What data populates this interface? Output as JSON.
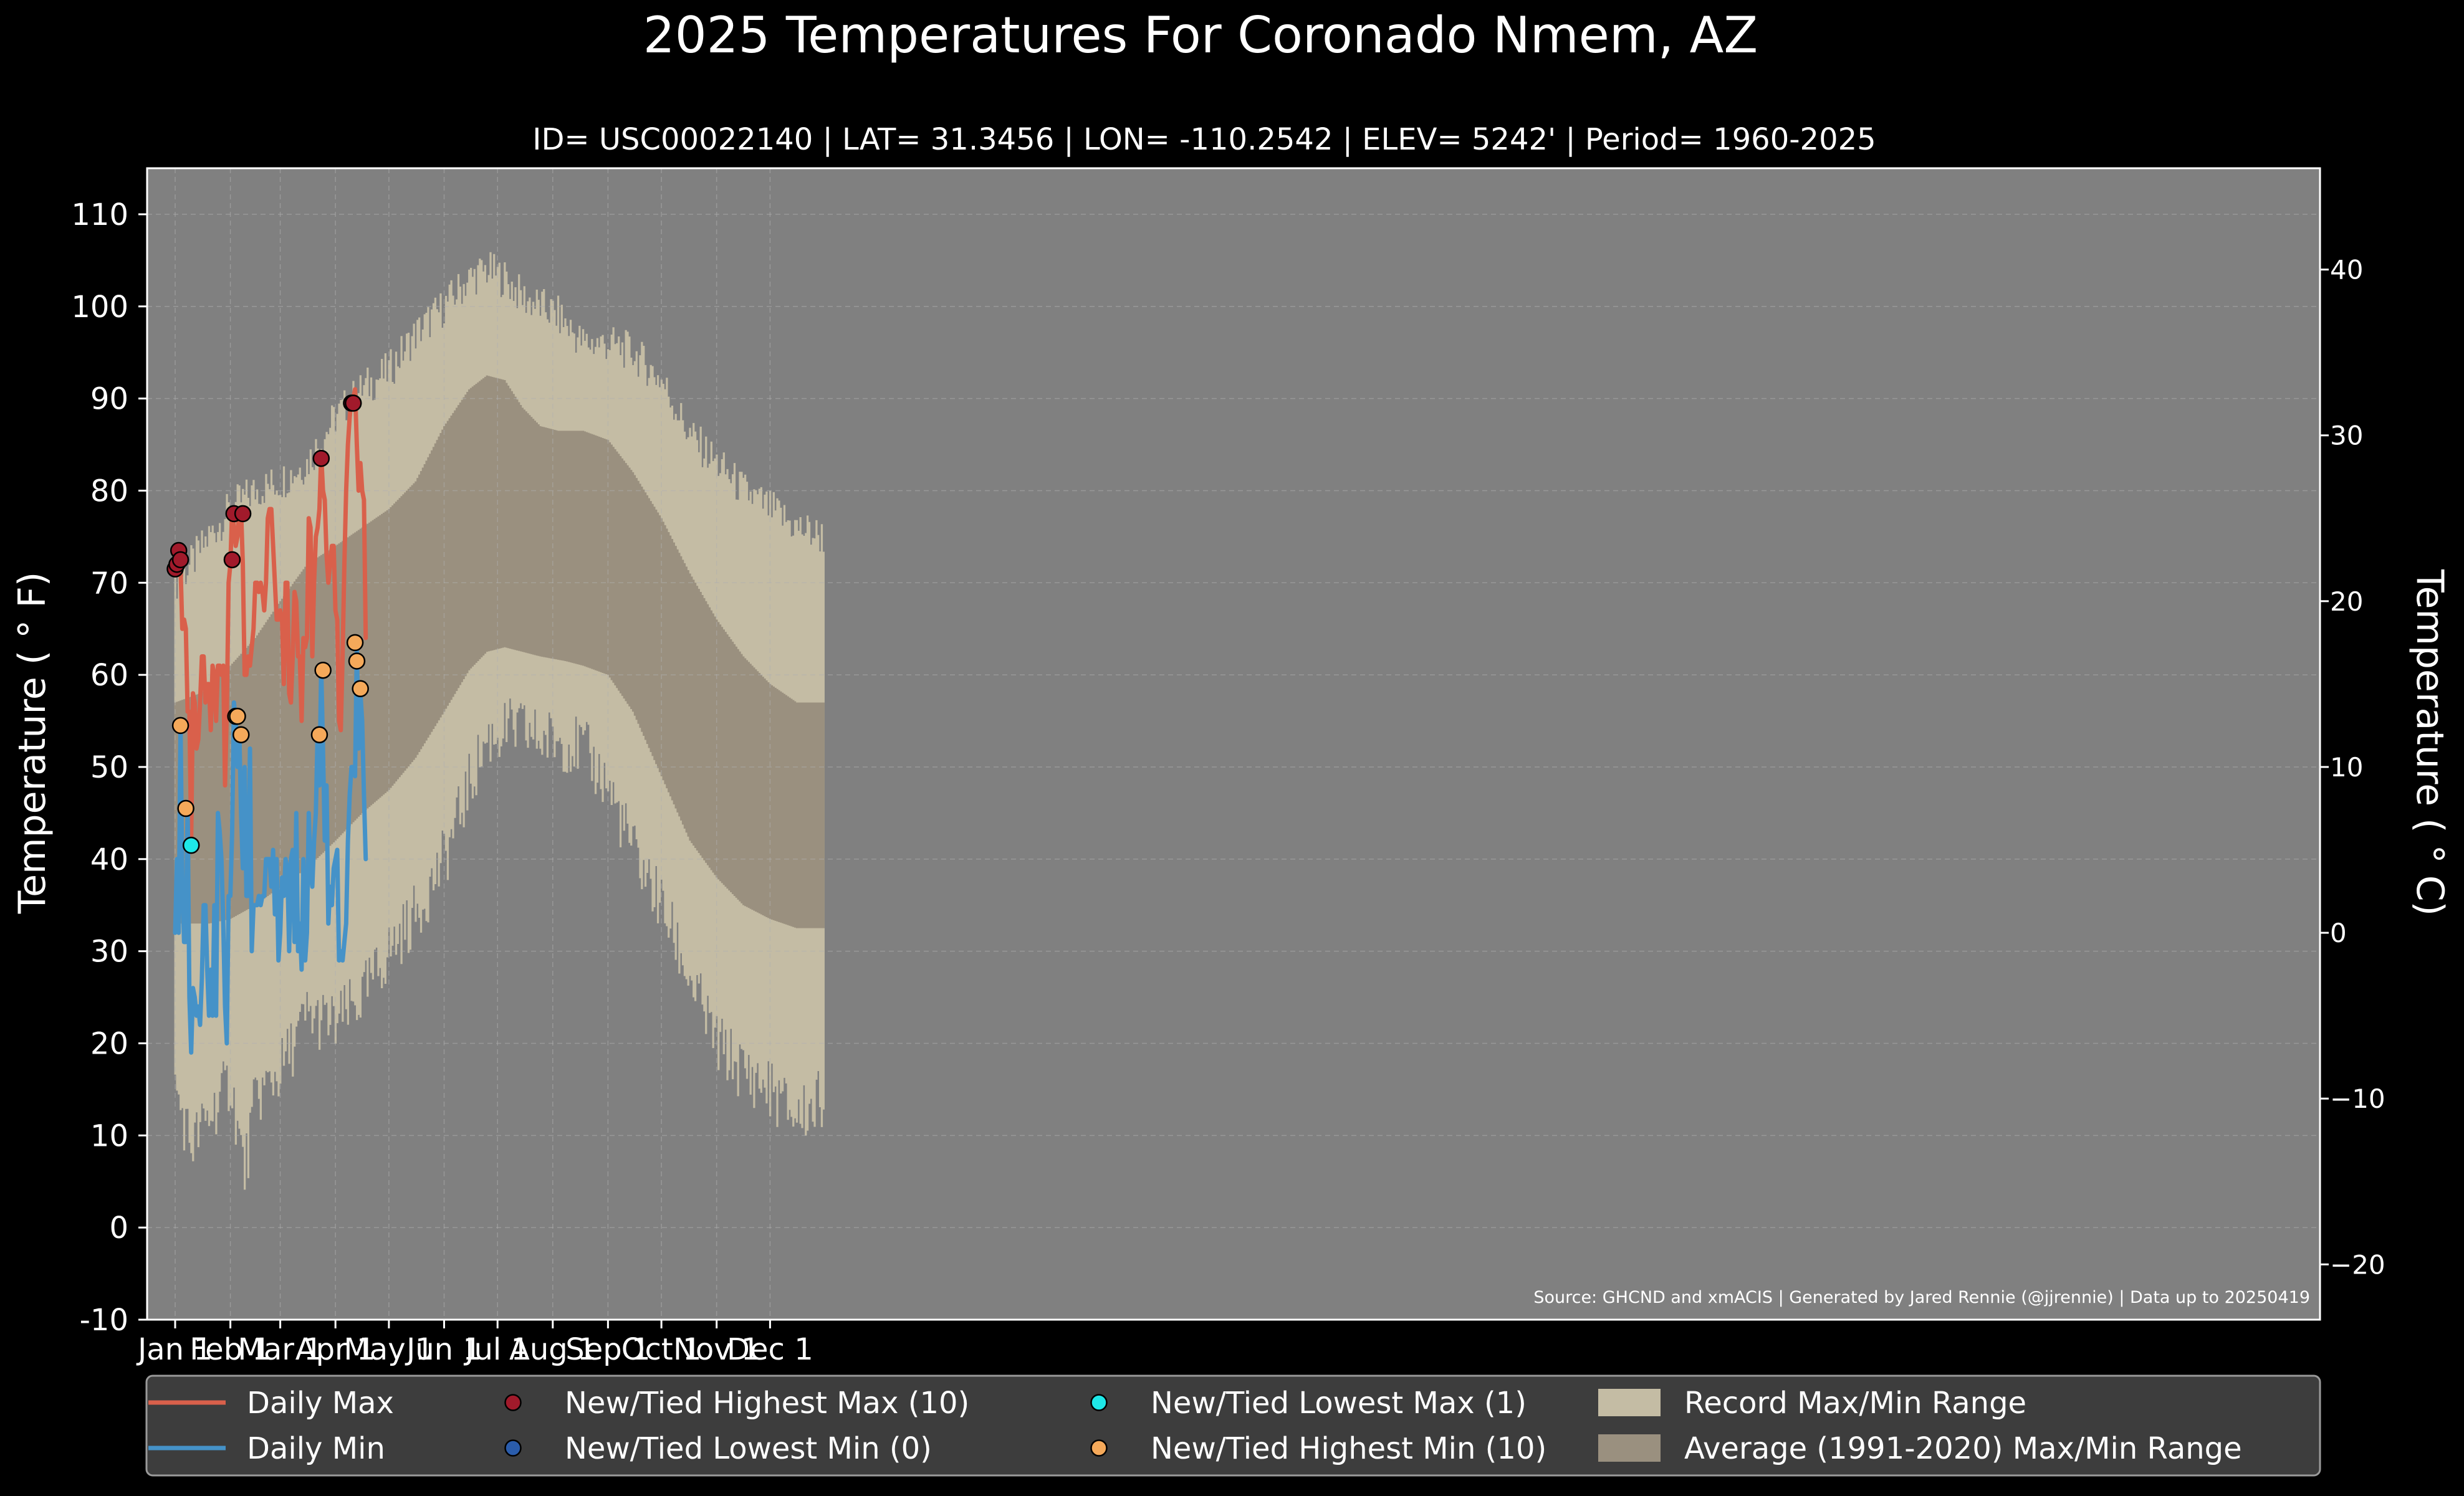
{
  "chart_data": {
    "type": "line",
    "title": "2025 Temperatures For Coronado Nmem, AZ",
    "subtitle": "ID= USC00022140 | LAT= 31.3456 | LON= -110.2542 | ELEV= 5242' | Period= 1960-2025",
    "ylabel": "Temperature ($^\\circ$F)",
    "ylabel_display": "Temperature ( ° F)",
    "y2label_display": "Temperature ( ° C)",
    "source_note": "Source: GHCND and xmACIS | Generated by Jared Rennie (@jjrennie) | Data up to 20250419",
    "ylim": [
      -10,
      115
    ],
    "yticks": [
      "-10",
      "0",
      "10",
      "20",
      "30",
      "40",
      "50",
      "60",
      "70",
      "80",
      "90",
      "100",
      "110"
    ],
    "y2ticks": [
      "−20",
      "−10",
      "0",
      "10",
      "20",
      "30",
      "40"
    ],
    "y2tick_values_c": [
      -20,
      -10,
      0,
      10,
      20,
      30,
      40
    ],
    "xticks": [
      {
        "label": "Jan 1",
        "day": 1
      },
      {
        "label": "Feb 1",
        "day": 32
      },
      {
        "label": "Mar 1",
        "day": 60
      },
      {
        "label": "Apr 1",
        "day": 91
      },
      {
        "label": "May 1",
        "day": 121
      },
      {
        "label": "Jun 1",
        "day": 152
      },
      {
        "label": "Jul 1",
        "day": 182
      },
      {
        "label": "Aug 1",
        "day": 213
      },
      {
        "label": "Sep 1",
        "day": 244
      },
      {
        "label": "Oct 1",
        "day": 274
      },
      {
        "label": "Nov 1",
        "day": 305
      },
      {
        "label": "Dec 1",
        "day": 335
      }
    ],
    "grid": true,
    "legend_position": "bottom",
    "colors": {
      "background": "#000000",
      "plot_bg": "#808080",
      "record_band": "#c4bca4",
      "normal_band": "#9a907f",
      "daily_max": "#d9604b",
      "daily_min": "#4592c8",
      "highest_max": "#a11a2b",
      "lowest_min": "#2a5cab",
      "lowest_max": "#1ee8e8",
      "highest_min": "#f5a95a"
    },
    "normal_max_anchors": [
      [
        1,
        57
      ],
      [
        15,
        58
      ],
      [
        32,
        61
      ],
      [
        46,
        64
      ],
      [
        60,
        68
      ],
      [
        75,
        72
      ],
      [
        91,
        74
      ],
      [
        106,
        76
      ],
      [
        121,
        78
      ],
      [
        136,
        81
      ],
      [
        152,
        87
      ],
      [
        166,
        91
      ],
      [
        176,
        92.5
      ],
      [
        186,
        92
      ],
      [
        196,
        89
      ],
      [
        206,
        87
      ],
      [
        216,
        86.5
      ],
      [
        230,
        86.5
      ],
      [
        244,
        85.5
      ],
      [
        258,
        82
      ],
      [
        274,
        77
      ],
      [
        290,
        71
      ],
      [
        305,
        66
      ],
      [
        320,
        62
      ],
      [
        335,
        59
      ],
      [
        350,
        57
      ],
      [
        365,
        57
      ]
    ],
    "normal_min_anchors": [
      [
        1,
        33
      ],
      [
        20,
        33
      ],
      [
        32,
        33.5
      ],
      [
        46,
        35
      ],
      [
        60,
        37
      ],
      [
        75,
        39
      ],
      [
        91,
        42
      ],
      [
        106,
        45
      ],
      [
        121,
        47.5
      ],
      [
        136,
        51
      ],
      [
        152,
        56
      ],
      [
        166,
        60.5
      ],
      [
        176,
        62.5
      ],
      [
        186,
        63
      ],
      [
        196,
        62.5
      ],
      [
        206,
        62
      ],
      [
        220,
        61.5
      ],
      [
        230,
        61
      ],
      [
        244,
        60
      ],
      [
        258,
        56
      ],
      [
        274,
        49
      ],
      [
        290,
        42
      ],
      [
        305,
        38
      ],
      [
        320,
        35
      ],
      [
        335,
        33.5
      ],
      [
        350,
        32.5
      ],
      [
        365,
        32.5
      ]
    ],
    "record_max_anchors": [
      [
        1,
        70
      ],
      [
        10,
        72
      ],
      [
        20,
        75
      ],
      [
        32,
        78
      ],
      [
        46,
        80
      ],
      [
        60,
        81
      ],
      [
        75,
        83
      ],
      [
        91,
        88
      ],
      [
        106,
        91
      ],
      [
        121,
        93
      ],
      [
        136,
        97
      ],
      [
        152,
        100
      ],
      [
        166,
        103
      ],
      [
        176,
        104
      ],
      [
        186,
        103
      ],
      [
        196,
        101
      ],
      [
        206,
        100
      ],
      [
        216,
        99
      ],
      [
        230,
        96
      ],
      [
        244,
        96
      ],
      [
        258,
        95
      ],
      [
        274,
        92
      ],
      [
        290,
        86
      ],
      [
        305,
        83
      ],
      [
        320,
        80
      ],
      [
        335,
        78
      ],
      [
        350,
        76
      ],
      [
        365,
        75
      ]
    ],
    "record_min_anchors": [
      [
        1,
        15
      ],
      [
        10,
        9
      ],
      [
        20,
        12
      ],
      [
        32,
        16
      ],
      [
        40,
        6
      ],
      [
        46,
        14
      ],
      [
        60,
        17
      ],
      [
        75,
        23
      ],
      [
        91,
        22
      ],
      [
        106,
        25
      ],
      [
        121,
        30
      ],
      [
        136,
        34
      ],
      [
        152,
        40
      ],
      [
        166,
        48
      ],
      [
        176,
        53
      ],
      [
        186,
        54
      ],
      [
        196,
        54
      ],
      [
        206,
        53
      ],
      [
        216,
        53
      ],
      [
        230,
        52
      ],
      [
        244,
        48
      ],
      [
        258,
        41
      ],
      [
        274,
        35
      ],
      [
        290,
        27
      ],
      [
        305,
        20
      ],
      [
        320,
        17
      ],
      [
        335,
        15
      ],
      [
        350,
        12
      ],
      [
        365,
        14
      ]
    ],
    "series": [
      {
        "name": "Daily Max",
        "values": [
          72,
          72,
          74,
          72,
          65,
          66,
          65,
          56,
          56,
          42,
          58,
          57,
          52,
          53,
          57,
          62,
          62,
          57,
          59,
          59,
          54,
          61,
          60,
          55,
          61,
          61,
          60,
          61,
          48,
          56,
          70,
          72,
          78,
          76,
          74,
          75,
          78,
          78,
          72,
          60,
          60,
          62,
          61,
          63,
          65,
          70,
          70,
          69,
          70,
          69,
          67,
          70,
          77,
          78,
          78,
          74,
          70,
          66,
          66,
          67,
          66,
          59,
          70,
          70,
          58,
          57,
          62,
          69,
          68,
          62,
          62,
          55,
          64,
          63,
          64,
          77,
          76,
          62,
          70,
          75,
          76,
          78,
          84,
          80,
          79,
          73,
          70,
          72,
          74,
          74,
          67,
          66,
          55,
          54,
          62,
          72,
          80,
          85,
          88,
          90,
          90,
          91,
          85,
          80,
          83,
          80,
          79,
          64
        ]
      },
      {
        "name": "Daily Min",
        "values": [
          32,
          40,
          32,
          55,
          38,
          31,
          31,
          46,
          25,
          19,
          26,
          25,
          23,
          24,
          22,
          27,
          35,
          35,
          28,
          23,
          28,
          23,
          35,
          23,
          45,
          43,
          40,
          33,
          24,
          20,
          36,
          36,
          43,
          57,
          55,
          50,
          54,
          45,
          39,
          50,
          36,
          36,
          52,
          30,
          35,
          35,
          35,
          36,
          35,
          36,
          36,
          40,
          40,
          40,
          37,
          41,
          34,
          40,
          29,
          32,
          38,
          36,
          40,
          39,
          30,
          40,
          41,
          31,
          45,
          30,
          33,
          28,
          40,
          29,
          32,
          45,
          39,
          37,
          42,
          45,
          54,
          48,
          61,
          52,
          42,
          48,
          33,
          37,
          35,
          39,
          40,
          41,
          29,
          30,
          29,
          31,
          33,
          42,
          47,
          50,
          50,
          49,
          63,
          52,
          58,
          55,
          47,
          40
        ]
      }
    ],
    "markers": {
      "highest_max": [
        [
          1,
          71.5
        ],
        [
          2,
          72
        ],
        [
          3,
          73.5
        ],
        [
          4,
          72.5
        ],
        [
          33,
          72.5
        ],
        [
          34,
          77.5
        ],
        [
          39,
          77.5
        ],
        [
          83,
          83.5
        ],
        [
          100,
          89.5
        ],
        [
          101,
          89.5
        ]
      ],
      "lowest_min": [],
      "lowest_max": [
        [
          10,
          41.5
        ]
      ],
      "highest_min": [
        [
          4,
          54.5
        ],
        [
          7,
          45.5
        ],
        [
          35,
          55.5
        ],
        [
          36,
          55.5
        ],
        [
          38,
          53.5
        ],
        [
          82,
          53.5
        ],
        [
          84,
          60.5
        ],
        [
          102,
          63.5
        ],
        [
          103,
          61.5
        ],
        [
          105,
          58.5
        ]
      ]
    },
    "legend": [
      {
        "label": "Daily Max",
        "kind": "line",
        "color_key": "daily_max"
      },
      {
        "label": "Daily Min",
        "kind": "line",
        "color_key": "daily_min"
      },
      {
        "label": "New/Tied Highest Max (10)",
        "kind": "dot",
        "color_key": "highest_max"
      },
      {
        "label": "New/Tied Lowest Min (0)",
        "kind": "dot",
        "color_key": "lowest_min"
      },
      {
        "label": "New/Tied Lowest Max (1)",
        "kind": "dot",
        "color_key": "lowest_max"
      },
      {
        "label": "New/Tied Highest Min (10)",
        "kind": "dot",
        "color_key": "highest_min"
      },
      {
        "label": "Record Max/Min Range",
        "kind": "patch",
        "color_key": "record_band"
      },
      {
        "label": "Average (1991-2020) Max/Min Range",
        "kind": "patch",
        "color_key": "normal_band"
      }
    ]
  }
}
